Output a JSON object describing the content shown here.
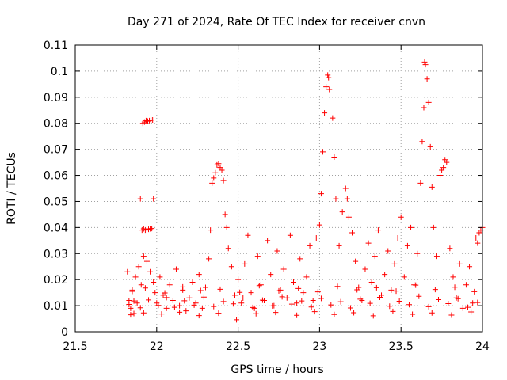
{
  "chart_data": {
    "type": "scatter",
    "title": "Day 271 of 2024, Rate Of TEC Index for receiver cnvn",
    "xlabel": "GPS time / hours",
    "ylabel": "ROTI / TECUs",
    "xlim": [
      21.5,
      24
    ],
    "ylim": [
      0,
      0.11
    ],
    "xticks": [
      "21.5",
      "22",
      "22.5",
      "23",
      "23.5",
      "24"
    ],
    "yticks": [
      "0",
      "0.01",
      "0.02",
      "0.03",
      "0.04",
      "0.05",
      "0.06",
      "0.07",
      "0.08",
      "0.09",
      "0.1",
      "0.11"
    ],
    "grid": true,
    "marker": "plus",
    "color": "#ff0000",
    "series": [
      {
        "name": "ROTI",
        "points": [
          [
            21.82,
            0.023
          ],
          [
            21.83,
            0.012
          ],
          [
            21.84,
            0.009
          ],
          [
            21.85,
            0.016
          ],
          [
            21.86,
            0.007
          ],
          [
            21.87,
            0.021
          ],
          [
            21.88,
            0.011
          ],
          [
            21.89,
            0.025
          ],
          [
            21.9,
            0.051
          ],
          [
            21.905,
            0.018
          ],
          [
            21.91,
            0.039
          ],
          [
            21.915,
            0.08
          ],
          [
            21.92,
            0.0395
          ],
          [
            21.925,
            0.0805
          ],
          [
            21.93,
            0.039
          ],
          [
            21.935,
            0.081
          ],
          [
            21.94,
            0.0392
          ],
          [
            21.945,
            0.0808
          ],
          [
            21.95,
            0.0393
          ],
          [
            21.955,
            0.081
          ],
          [
            21.96,
            0.0395
          ],
          [
            21.965,
            0.0812
          ],
          [
            21.97,
            0.0396
          ],
          [
            21.975,
            0.0813
          ],
          [
            21.98,
            0.051
          ],
          [
            21.92,
            0.029
          ],
          [
            21.94,
            0.027
          ],
          [
            21.96,
            0.023
          ],
          [
            21.98,
            0.019
          ],
          [
            21.99,
            0.015
          ],
          [
            22.0,
            0.011
          ],
          [
            22.02,
            0.021
          ],
          [
            22.04,
            0.014
          ],
          [
            22.06,
            0.009
          ],
          [
            22.08,
            0.018
          ],
          [
            22.1,
            0.012
          ],
          [
            22.12,
            0.024
          ],
          [
            22.14,
            0.01
          ],
          [
            22.16,
            0.016
          ],
          [
            22.18,
            0.008
          ],
          [
            22.2,
            0.013
          ],
          [
            22.22,
            0.019
          ],
          [
            22.24,
            0.011
          ],
          [
            22.26,
            0.022
          ],
          [
            22.28,
            0.009
          ],
          [
            22.3,
            0.017
          ],
          [
            22.32,
            0.028
          ],
          [
            22.33,
            0.039
          ],
          [
            22.34,
            0.057
          ],
          [
            22.35,
            0.059
          ],
          [
            22.36,
            0.061
          ],
          [
            22.37,
            0.064
          ],
          [
            22.38,
            0.0645
          ],
          [
            22.39,
            0.063
          ],
          [
            22.4,
            0.062
          ],
          [
            22.41,
            0.058
          ],
          [
            22.42,
            0.045
          ],
          [
            22.43,
            0.04
          ],
          [
            22.44,
            0.032
          ],
          [
            22.46,
            0.025
          ],
          [
            22.48,
            0.014
          ],
          [
            22.5,
            0.02
          ],
          [
            22.52,
            0.011
          ],
          [
            22.54,
            0.026
          ],
          [
            22.56,
            0.037
          ],
          [
            22.58,
            0.015
          ],
          [
            22.6,
            0.009
          ],
          [
            22.62,
            0.029
          ],
          [
            22.64,
            0.018
          ],
          [
            22.66,
            0.012
          ],
          [
            22.68,
            0.035
          ],
          [
            22.7,
            0.022
          ],
          [
            22.72,
            0.01
          ],
          [
            22.74,
            0.031
          ],
          [
            22.76,
            0.016
          ],
          [
            22.78,
            0.024
          ],
          [
            22.8,
            0.013
          ],
          [
            22.82,
            0.037
          ],
          [
            22.84,
            0.019
          ],
          [
            22.86,
            0.011
          ],
          [
            22.88,
            0.028
          ],
          [
            22.9,
            0.015
          ],
          [
            22.92,
            0.021
          ],
          [
            22.94,
            0.033
          ],
          [
            22.96,
            0.012
          ],
          [
            22.98,
            0.036
          ],
          [
            23.0,
            0.041
          ],
          [
            23.01,
            0.053
          ],
          [
            23.02,
            0.069
          ],
          [
            23.03,
            0.084
          ],
          [
            23.04,
            0.094
          ],
          [
            23.05,
            0.0985
          ],
          [
            23.055,
            0.0975
          ],
          [
            23.06,
            0.093
          ],
          [
            23.08,
            0.082
          ],
          [
            23.09,
            0.067
          ],
          [
            23.1,
            0.051
          ],
          [
            23.12,
            0.033
          ],
          [
            23.14,
            0.046
          ],
          [
            23.16,
            0.055
          ],
          [
            23.17,
            0.051
          ],
          [
            23.18,
            0.044
          ],
          [
            23.2,
            0.038
          ],
          [
            23.22,
            0.027
          ],
          [
            23.24,
            0.017
          ],
          [
            23.26,
            0.012
          ],
          [
            23.28,
            0.024
          ],
          [
            23.3,
            0.034
          ],
          [
            23.32,
            0.019
          ],
          [
            23.34,
            0.029
          ],
          [
            23.36,
            0.039
          ],
          [
            23.38,
            0.014
          ],
          [
            23.4,
            0.022
          ],
          [
            23.42,
            0.031
          ],
          [
            23.44,
            0.016
          ],
          [
            23.46,
            0.026
          ],
          [
            23.48,
            0.036
          ],
          [
            23.5,
            0.044
          ],
          [
            23.52,
            0.021
          ],
          [
            23.54,
            0.033
          ],
          [
            23.56,
            0.04
          ],
          [
            23.58,
            0.018
          ],
          [
            23.6,
            0.03
          ],
          [
            23.62,
            0.057
          ],
          [
            23.63,
            0.073
          ],
          [
            23.64,
            0.086
          ],
          [
            23.645,
            0.1035
          ],
          [
            23.65,
            0.1025
          ],
          [
            23.66,
            0.097
          ],
          [
            23.67,
            0.088
          ],
          [
            23.68,
            0.071
          ],
          [
            23.69,
            0.0555
          ],
          [
            23.7,
            0.04
          ],
          [
            23.72,
            0.029
          ],
          [
            23.74,
            0.06
          ],
          [
            23.75,
            0.062
          ],
          [
            23.76,
            0.063
          ],
          [
            23.77,
            0.066
          ],
          [
            23.78,
            0.065
          ],
          [
            23.8,
            0.032
          ],
          [
            23.82,
            0.021
          ],
          [
            23.84,
            0.013
          ],
          [
            23.86,
            0.026
          ],
          [
            23.88,
            0.009
          ],
          [
            23.9,
            0.018
          ],
          [
            23.92,
            0.025
          ],
          [
            23.94,
            0.011
          ],
          [
            23.96,
            0.036
          ],
          [
            23.97,
            0.034
          ],
          [
            23.98,
            0.038
          ],
          [
            23.99,
            0.039
          ],
          [
            24.0,
            0.04
          ],
          [
            21.83,
            0.0105
          ],
          [
            21.86,
            0.0118
          ],
          [
            21.9,
            0.0092
          ],
          [
            21.95,
            0.0122
          ],
          [
            22.01,
            0.0101
          ],
          [
            22.06,
            0.0131
          ],
          [
            22.11,
            0.0094
          ],
          [
            22.17,
            0.0119
          ],
          [
            22.23,
            0.0102
          ],
          [
            22.29,
            0.0133
          ],
          [
            22.35,
            0.0097
          ],
          [
            22.41,
            0.0116
          ],
          [
            22.47,
            0.0107
          ],
          [
            22.53,
            0.0129
          ],
          [
            22.59,
            0.0093
          ],
          [
            22.65,
            0.0121
          ],
          [
            22.71,
            0.0099
          ],
          [
            22.77,
            0.0134
          ],
          [
            22.83,
            0.0106
          ],
          [
            22.89,
            0.0118
          ],
          [
            22.95,
            0.0095
          ],
          [
            23.01,
            0.0128
          ],
          [
            23.07,
            0.0103
          ],
          [
            23.13,
            0.0115
          ],
          [
            23.19,
            0.0091
          ],
          [
            23.25,
            0.0125
          ],
          [
            23.31,
            0.0109
          ],
          [
            23.37,
            0.0132
          ],
          [
            23.43,
            0.0098
          ],
          [
            23.49,
            0.0117
          ],
          [
            23.55,
            0.0104
          ],
          [
            23.61,
            0.0136
          ],
          [
            23.67,
            0.0096
          ],
          [
            23.73,
            0.0123
          ],
          [
            23.79,
            0.0108
          ],
          [
            23.85,
            0.0127
          ],
          [
            23.91,
            0.0094
          ],
          [
            23.97,
            0.0112
          ],
          [
            21.84,
            0.0065
          ],
          [
            21.92,
            0.0072
          ],
          [
            22.03,
            0.0068
          ],
          [
            22.14,
            0.0075
          ],
          [
            22.26,
            0.0062
          ],
          [
            22.38,
            0.0071
          ],
          [
            22.49,
            0.0046
          ],
          [
            22.61,
            0.0069
          ],
          [
            22.73,
            0.0074
          ],
          [
            22.86,
            0.0063
          ],
          [
            22.97,
            0.0077
          ],
          [
            23.09,
            0.0066
          ],
          [
            23.21,
            0.0073
          ],
          [
            23.33,
            0.0061
          ],
          [
            23.45,
            0.0078
          ],
          [
            23.57,
            0.0067
          ],
          [
            23.69,
            0.0072
          ],
          [
            23.81,
            0.0064
          ],
          [
            23.93,
            0.0076
          ],
          [
            21.85,
            0.0155
          ],
          [
            21.93,
            0.0168
          ],
          [
            22.05,
            0.0149
          ],
          [
            22.16,
            0.0172
          ],
          [
            22.27,
            0.0158
          ],
          [
            22.39,
            0.0163
          ],
          [
            22.51,
            0.0151
          ],
          [
            22.63,
            0.0177
          ],
          [
            22.75,
            0.0157
          ],
          [
            22.87,
            0.0166
          ],
          [
            22.99,
            0.0153
          ],
          [
            23.11,
            0.0174
          ],
          [
            23.23,
            0.0161
          ],
          [
            23.35,
            0.0169
          ],
          [
            23.47,
            0.0156
          ],
          [
            23.59,
            0.0179
          ],
          [
            23.71,
            0.0162
          ],
          [
            23.83,
            0.0171
          ],
          [
            23.95,
            0.0154
          ]
        ]
      }
    ]
  }
}
